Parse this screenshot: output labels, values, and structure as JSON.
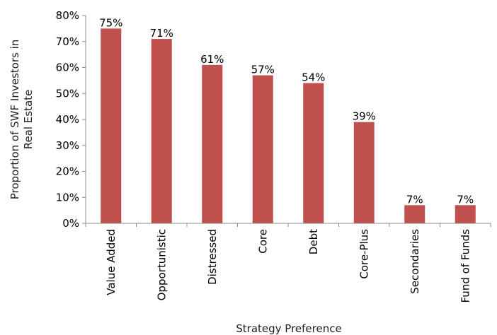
{
  "chart_data": {
    "type": "bar",
    "title": "",
    "xlabel": "Strategy Preference",
    "ylabel_lines": [
      "Proportion of SWF Investors in",
      "Real Estate"
    ],
    "categories": [
      "Value Added",
      "Opportunistic",
      "Distressed",
      "Core",
      "Debt",
      "Core-Plus",
      "Secondaries",
      "Fund of Funds"
    ],
    "values": [
      75,
      71,
      61,
      57,
      54,
      39,
      7,
      7
    ],
    "data_labels": [
      "75%",
      "71%",
      "61%",
      "57%",
      "54%",
      "39%",
      "7%",
      "7%"
    ],
    "ylim": [
      0,
      80
    ],
    "yticks": [
      0,
      10,
      20,
      30,
      40,
      50,
      60,
      70,
      80
    ],
    "ytick_labels": [
      "0%",
      "10%",
      "20%",
      "30%",
      "40%",
      "50%",
      "60%",
      "70%",
      "80%"
    ],
    "grid": false,
    "legend": "none",
    "bar_color": "#c0504d"
  }
}
